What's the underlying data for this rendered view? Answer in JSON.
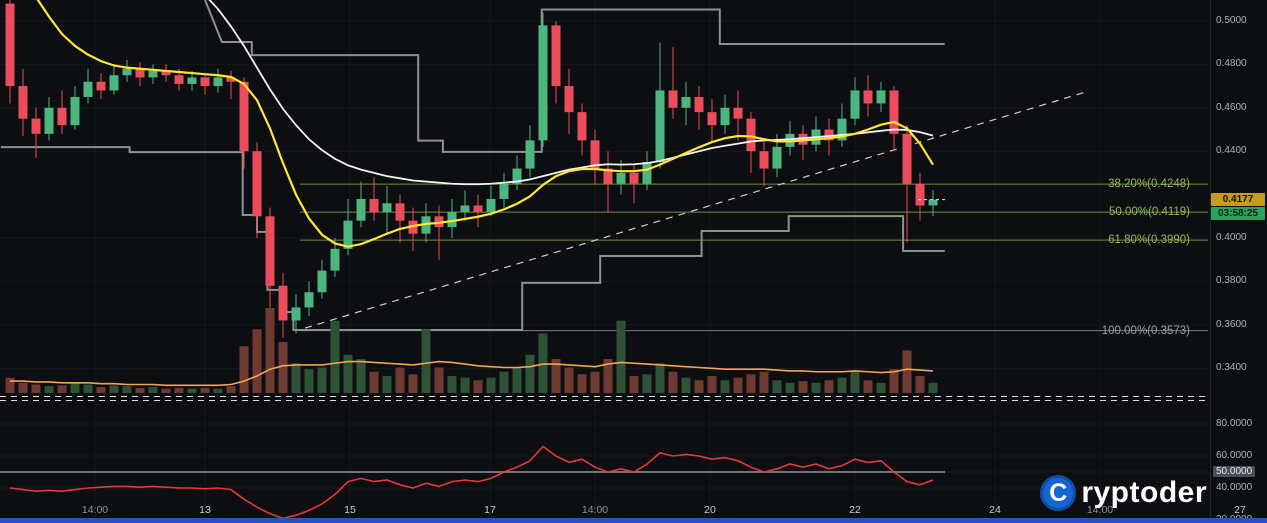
{
  "brand": {
    "name": "Cryptoder",
    "logo_letter": "C",
    "logo_rest": "ryptoder"
  },
  "price_axis": {
    "ticks": [
      {
        "label": "0.5000",
        "value": 0.5
      },
      {
        "label": "0.4800",
        "value": 0.48
      },
      {
        "label": "0.4600",
        "value": 0.46
      },
      {
        "label": "0.4400",
        "value": 0.44
      },
      {
        "label": "0.4000",
        "value": 0.4
      },
      {
        "label": "0.3800",
        "value": 0.38
      },
      {
        "label": "0.3600",
        "value": 0.36
      },
      {
        "label": "0.3400",
        "value": 0.34
      }
    ],
    "current_price": {
      "value": "0.4177"
    },
    "countdown": {
      "value": "03:58:25"
    }
  },
  "rsi_axis": {
    "ticks": [
      {
        "label": "80.0000",
        "value": 80,
        "badge": false
      },
      {
        "label": "60.0000",
        "value": 60,
        "badge": false
      },
      {
        "label": "50.0000",
        "value": 50,
        "badge": true
      },
      {
        "label": "40.0000",
        "value": 40,
        "badge": false
      },
      {
        "label": "20.0000",
        "value": 20,
        "badge": false
      }
    ]
  },
  "time_axis": {
    "ticks": [
      {
        "label": "14:00",
        "x": 95,
        "major": false
      },
      {
        "label": "13",
        "x": 205,
        "major": true
      },
      {
        "label": "15",
        "x": 350,
        "major": true
      },
      {
        "label": "17",
        "x": 490,
        "major": true
      },
      {
        "label": "14:00",
        "x": 595,
        "major": false
      },
      {
        "label": "20",
        "x": 710,
        "major": true
      },
      {
        "label": "22",
        "x": 855,
        "major": true
      },
      {
        "label": "24",
        "x": 995,
        "major": true
      },
      {
        "label": "14:00",
        "x": 1100,
        "major": false
      },
      {
        "label": "27",
        "x": 1240,
        "major": true
      }
    ]
  },
  "chart_data": {
    "type": "candlestick",
    "price_line_value": 0.4177,
    "ylim": [
      0.328,
      0.51
    ],
    "rsi_range": [
      20,
      80
    ],
    "candles": [
      [
        0.508,
        0.512,
        0.462,
        0.47
      ],
      [
        0.47,
        0.478,
        0.447,
        0.455
      ],
      [
        0.455,
        0.46,
        0.437,
        0.448
      ],
      [
        0.448,
        0.465,
        0.445,
        0.46
      ],
      [
        0.46,
        0.468,
        0.448,
        0.452
      ],
      [
        0.452,
        0.47,
        0.45,
        0.465
      ],
      [
        0.465,
        0.478,
        0.462,
        0.472
      ],
      [
        0.472,
        0.476,
        0.464,
        0.468
      ],
      [
        0.468,
        0.48,
        0.466,
        0.475
      ],
      [
        0.475,
        0.482,
        0.472,
        0.478
      ],
      [
        0.478,
        0.481,
        0.47,
        0.474
      ],
      [
        0.474,
        0.48,
        0.471,
        0.477
      ],
      [
        0.477,
        0.48,
        0.472,
        0.475
      ],
      [
        0.475,
        0.478,
        0.468,
        0.471
      ],
      [
        0.471,
        0.477,
        0.468,
        0.474
      ],
      [
        0.474,
        0.476,
        0.466,
        0.47
      ],
      [
        0.47,
        0.478,
        0.467,
        0.474
      ],
      [
        0.474,
        0.477,
        0.464,
        0.472
      ],
      [
        0.472,
        0.474,
        0.432,
        0.44
      ],
      [
        0.44,
        0.444,
        0.4,
        0.41
      ],
      [
        0.41,
        0.414,
        0.368,
        0.378
      ],
      [
        0.378,
        0.384,
        0.354,
        0.362
      ],
      [
        0.362,
        0.374,
        0.356,
        0.368
      ],
      [
        0.368,
        0.38,
        0.364,
        0.375
      ],
      [
        0.375,
        0.39,
        0.372,
        0.385
      ],
      [
        0.385,
        0.4,
        0.382,
        0.395
      ],
      [
        0.395,
        0.418,
        0.392,
        0.408
      ],
      [
        0.408,
        0.426,
        0.405,
        0.418
      ],
      [
        0.418,
        0.428,
        0.408,
        0.412
      ],
      [
        0.412,
        0.424,
        0.402,
        0.416
      ],
      [
        0.416,
        0.42,
        0.398,
        0.408
      ],
      [
        0.408,
        0.414,
        0.394,
        0.402
      ],
      [
        0.402,
        0.416,
        0.398,
        0.41
      ],
      [
        0.41,
        0.415,
        0.39,
        0.405
      ],
      [
        0.405,
        0.418,
        0.4,
        0.412
      ],
      [
        0.412,
        0.422,
        0.408,
        0.415
      ],
      [
        0.415,
        0.42,
        0.405,
        0.412
      ],
      [
        0.412,
        0.424,
        0.41,
        0.418
      ],
      [
        0.418,
        0.43,
        0.414,
        0.425
      ],
      [
        0.425,
        0.438,
        0.422,
        0.432
      ],
      [
        0.432,
        0.452,
        0.428,
        0.445
      ],
      [
        0.445,
        0.504,
        0.442,
        0.498
      ],
      [
        0.498,
        0.5,
        0.462,
        0.47
      ],
      [
        0.47,
        0.478,
        0.448,
        0.458
      ],
      [
        0.458,
        0.462,
        0.438,
        0.445
      ],
      [
        0.445,
        0.45,
        0.425,
        0.432
      ],
      [
        0.432,
        0.44,
        0.412,
        0.425
      ],
      [
        0.425,
        0.436,
        0.42,
        0.43
      ],
      [
        0.43,
        0.434,
        0.416,
        0.425
      ],
      [
        0.425,
        0.44,
        0.422,
        0.435
      ],
      [
        0.435,
        0.49,
        0.432,
        0.468
      ],
      [
        0.468,
        0.488,
        0.455,
        0.46
      ],
      [
        0.46,
        0.472,
        0.452,
        0.465
      ],
      [
        0.465,
        0.47,
        0.45,
        0.458
      ],
      [
        0.458,
        0.464,
        0.444,
        0.452
      ],
      [
        0.452,
        0.466,
        0.448,
        0.46
      ],
      [
        0.46,
        0.468,
        0.445,
        0.455
      ],
      [
        0.455,
        0.458,
        0.43,
        0.44
      ],
      [
        0.44,
        0.446,
        0.424,
        0.432
      ],
      [
        0.432,
        0.448,
        0.428,
        0.442
      ],
      [
        0.442,
        0.454,
        0.438,
        0.448
      ],
      [
        0.448,
        0.452,
        0.436,
        0.443
      ],
      [
        0.443,
        0.456,
        0.44,
        0.45
      ],
      [
        0.45,
        0.455,
        0.438,
        0.445
      ],
      [
        0.445,
        0.462,
        0.442,
        0.455
      ],
      [
        0.455,
        0.474,
        0.452,
        0.468
      ],
      [
        0.468,
        0.475,
        0.456,
        0.462
      ],
      [
        0.462,
        0.472,
        0.458,
        0.468
      ],
      [
        0.468,
        0.47,
        0.44,
        0.448
      ],
      [
        0.448,
        0.452,
        0.398,
        0.425
      ],
      [
        0.425,
        0.43,
        0.408,
        0.415
      ],
      [
        0.415,
        0.422,
        0.41,
        0.4177
      ]
    ],
    "volume": [
      18,
      12,
      10,
      8,
      9,
      12,
      10,
      7,
      9,
      8,
      6,
      7,
      5,
      6,
      5,
      6,
      5,
      8,
      55,
      75,
      100,
      60,
      35,
      28,
      30,
      85,
      45,
      40,
      25,
      20,
      30,
      22,
      75,
      30,
      20,
      18,
      15,
      18,
      25,
      30,
      45,
      70,
      40,
      30,
      22,
      25,
      40,
      85,
      20,
      22,
      35,
      25,
      18,
      15,
      20,
      15,
      18,
      22,
      25,
      15,
      12,
      14,
      12,
      15,
      18,
      25,
      15,
      12,
      28,
      50,
      20,
      12
    ],
    "volume_ma": [
      14,
      14,
      13,
      13,
      12,
      12,
      12,
      11,
      11,
      10,
      10,
      10,
      9,
      9,
      9,
      9,
      9,
      10,
      14,
      20,
      28,
      32,
      33,
      33,
      33,
      35,
      37,
      37,
      36,
      35,
      34,
      33,
      35,
      37,
      36,
      34,
      32,
      31,
      30,
      30,
      31,
      34,
      34,
      33,
      32,
      31,
      34,
      36,
      35,
      34,
      33,
      32,
      31,
      30,
      29,
      28,
      28,
      28,
      28,
      27,
      26,
      26,
      25,
      25,
      25,
      26,
      25,
      24,
      25,
      28,
      27,
      26
    ],
    "overlays": {
      "white_ma": [
        0.56,
        0.555,
        0.55,
        0.545,
        0.54,
        0.535,
        0.531,
        0.527,
        0.524,
        0.521,
        0.519,
        0.517,
        0.5155,
        0.514,
        0.513,
        0.512,
        0.5055,
        0.4975,
        0.4885,
        0.4785,
        0.4685,
        0.4595,
        0.452,
        0.4455,
        0.4405,
        0.4365,
        0.4335,
        0.4315,
        0.43,
        0.4285,
        0.4275,
        0.4265,
        0.426,
        0.4255,
        0.425,
        0.4248,
        0.4248,
        0.425,
        0.4255,
        0.426,
        0.427,
        0.4285,
        0.43,
        0.4315,
        0.4325,
        0.4335,
        0.434,
        0.4338,
        0.434,
        0.4345,
        0.4355,
        0.437,
        0.4385,
        0.44,
        0.4415,
        0.4425,
        0.4435,
        0.4445,
        0.445,
        0.4452,
        0.4455,
        0.446,
        0.4465,
        0.447,
        0.4475,
        0.448,
        0.4487,
        0.4494,
        0.45,
        0.4498,
        0.4488,
        0.4472
      ],
      "yellow_ma": [
        0.535,
        0.522,
        0.511,
        0.502,
        0.494,
        0.4885,
        0.4845,
        0.4815,
        0.4795,
        0.4785,
        0.478,
        0.4775,
        0.477,
        0.4765,
        0.476,
        0.4755,
        0.475,
        0.4742,
        0.471,
        0.4635,
        0.4505,
        0.4345,
        0.42,
        0.409,
        0.4015,
        0.3975,
        0.396,
        0.3972,
        0.3995,
        0.402,
        0.4042,
        0.4055,
        0.4065,
        0.407,
        0.4078,
        0.4088,
        0.4098,
        0.4112,
        0.4132,
        0.4158,
        0.4192,
        0.4245,
        0.4285,
        0.4308,
        0.4318,
        0.4318,
        0.4312,
        0.4308,
        0.4308,
        0.4315,
        0.4338,
        0.4365,
        0.4392,
        0.4418,
        0.4442,
        0.446,
        0.447,
        0.4468,
        0.4455,
        0.4445,
        0.4445,
        0.445,
        0.4455,
        0.446,
        0.4468,
        0.448,
        0.45,
        0.4522,
        0.4535,
        0.4505,
        0.4435,
        0.4338
      ]
    },
    "channels": {
      "upper": [
        [
          14.85,
          0.512
        ],
        [
          16.3,
          0.4903
        ],
        [
          18.6,
          0.4903
        ],
        [
          18.6,
          0.4843
        ],
        [
          31.4,
          0.4843
        ],
        [
          31.4,
          0.4449
        ],
        [
          33.3,
          0.4449
        ],
        [
          33.3,
          0.4397
        ],
        [
          40.9,
          0.4397
        ],
        [
          40.9,
          0.5053
        ],
        [
          54.6,
          0.5053
        ],
        [
          54.6,
          0.4894
        ],
        [
          71.9,
          0.4894
        ]
      ],
      "lower": [
        [
          -0.7,
          0.4419
        ],
        [
          9.2,
          0.4419
        ],
        [
          9.2,
          0.4396
        ],
        [
          17.9,
          0.4396
        ],
        [
          17.9,
          0.4106
        ],
        [
          19.0,
          0.4106
        ],
        [
          19.0,
          0.4028
        ],
        [
          19.8,
          0.4028
        ],
        [
          19.8,
          0.3761
        ],
        [
          20.8,
          0.3761
        ],
        [
          20.8,
          0.3659
        ],
        [
          21.8,
          0.3659
        ],
        [
          21.8,
          0.3576
        ],
        [
          39.4,
          0.3576
        ],
        [
          39.4,
          0.3793
        ],
        [
          45.4,
          0.3793
        ],
        [
          45.4,
          0.3917
        ],
        [
          53.2,
          0.3917
        ],
        [
          53.2,
          0.4032
        ],
        [
          59.9,
          0.4032
        ],
        [
          59.9,
          0.4101
        ],
        [
          68.7,
          0.4101
        ],
        [
          68.7,
          0.394
        ],
        [
          71.9,
          0.394
        ]
      ]
    },
    "trendline": [
      [
        22.7,
        0.3585
      ],
      [
        82.7,
        0.4672
      ]
    ],
    "fib_levels": [
      {
        "label": "38.20%(0.4248)",
        "price": 0.4248,
        "color": "#8fbc4f"
      },
      {
        "label": "50.00%(0.4119)",
        "price": 0.4119,
        "color": "#8fbc4f"
      },
      {
        "label": "61.80%(0.3990)",
        "price": 0.399,
        "color": "#8fbc4f"
      },
      {
        "label": "100.00%(0.3573)",
        "price": 0.3573,
        "color": "#9aa0a6"
      }
    ],
    "rsi": [
      40,
      39,
      38,
      38.5,
      38,
      39,
      40,
      40.5,
      41,
      41,
      40.5,
      41,
      40.5,
      40,
      40,
      39.5,
      40,
      39,
      33,
      28,
      24,
      21,
      23,
      26,
      30,
      36,
      44,
      46,
      44,
      45,
      42,
      40,
      43,
      41,
      44,
      45,
      44,
      46,
      50,
      53,
      57,
      66,
      60,
      56,
      58,
      53,
      50,
      52,
      50,
      55,
      62,
      60,
      61,
      60,
      58,
      59,
      57,
      53,
      50,
      52,
      55,
      53,
      55,
      52,
      54,
      58,
      56,
      57,
      50,
      44,
      42,
      45
    ],
    "rsi_mid": 50,
    "colors": {
      "up": "#4db57f",
      "down": "#eb4d5c",
      "vol_up": "#2f5136",
      "vol_down": "#6f3a31",
      "ma_white": "#f2f2f2",
      "ma_yellow": "#ffe634",
      "volume_ma": "#f3a652",
      "channel": "#8e9093",
      "trend": "#cccccc",
      "rsi": "#e53935",
      "grid": "#16181d",
      "separator": "#dcdcdc",
      "rsi_mid_line": "#70757d",
      "last_price_dash": "#e8e8e8"
    }
  }
}
